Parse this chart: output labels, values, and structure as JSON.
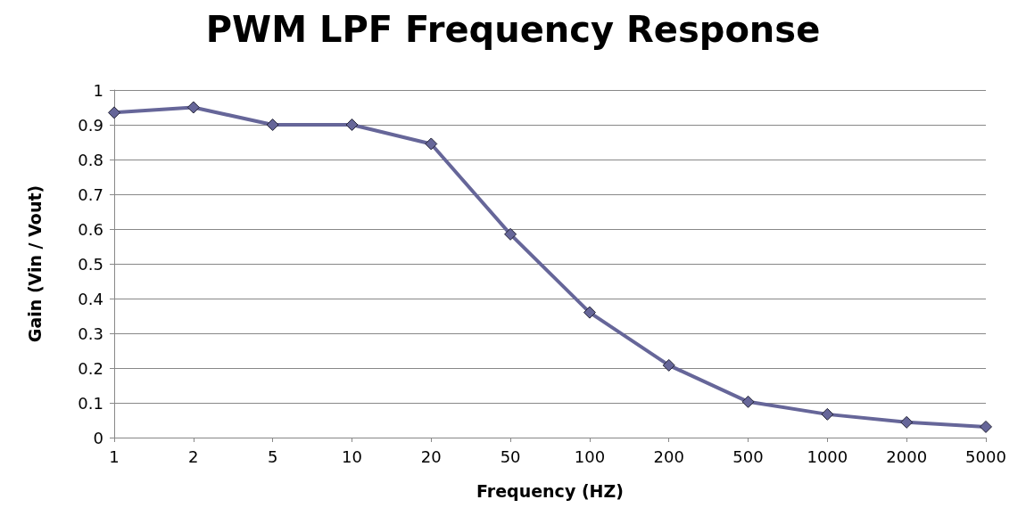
{
  "chart_data": {
    "type": "line",
    "title": "PWM LPF Frequency Response",
    "xlabel": "Frequency (HZ)",
    "ylabel": "Gain (Vin / Vout)",
    "categories": [
      "1",
      "2",
      "5",
      "10",
      "20",
      "50",
      "100",
      "200",
      "500",
      "1000",
      "2000",
      "5000"
    ],
    "series": [
      {
        "color": "#666699",
        "values": [
          0.935,
          0.95,
          0.9,
          0.9,
          0.845,
          0.585,
          0.36,
          0.208,
          0.103,
          0.067,
          0.044,
          0.031
        ]
      }
    ],
    "ylim": [
      0,
      1
    ],
    "yticks": [
      0,
      0.1,
      0.2,
      0.3,
      0.4,
      0.5,
      0.6,
      0.7,
      0.8,
      0.9,
      1
    ],
    "grid": "y",
    "marker": "diamond",
    "line_style": "solid"
  }
}
